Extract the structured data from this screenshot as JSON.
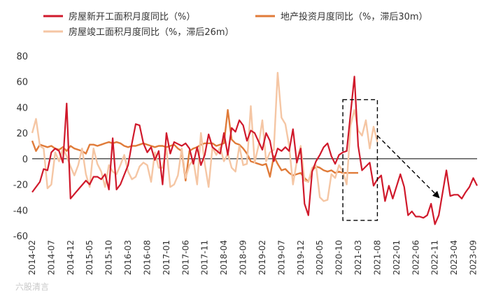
{
  "watermark": "六股清言",
  "chart_data": {
    "type": "line",
    "title": "",
    "xlabel": "",
    "ylabel": "",
    "ylim": [
      -60,
      80
    ],
    "yticks": [
      -60,
      -40,
      -20,
      0,
      20,
      40,
      60,
      80
    ],
    "x_start": "2014-02",
    "x_end": "2023-10",
    "x_tick_labels": [
      "2014-02",
      "2014-07",
      "2014-12",
      "2015-05",
      "2015-10",
      "2016-03",
      "2016-08",
      "2017-01",
      "2017-06",
      "2017-11",
      "2018-04",
      "2018-09",
      "2019-02",
      "2019-07",
      "2019-12",
      "2020-05",
      "2020-10",
      "2021-03",
      "2021-08",
      "2022-01",
      "2022-06",
      "2022-11",
      "2023-04",
      "2023-09"
    ],
    "legend_position": "top",
    "series": [
      {
        "name": "房屋新开工面积月度同比（%）",
        "color": "#d0192b",
        "points": [
          [
            "2014-02",
            -26
          ],
          [
            "2014-04",
            -18
          ],
          [
            "2014-05",
            -8
          ],
          [
            "2014-06",
            -9
          ],
          [
            "2014-07",
            5
          ],
          [
            "2014-08",
            8
          ],
          [
            "2014-09",
            6
          ],
          [
            "2014-10",
            -3
          ],
          [
            "2014-11",
            43
          ],
          [
            "2014-12",
            -31
          ],
          [
            "2015-02",
            -24
          ],
          [
            "2015-04",
            -17
          ],
          [
            "2015-05",
            -20
          ],
          [
            "2015-06",
            -14
          ],
          [
            "2015-07",
            -14
          ],
          [
            "2015-08",
            -16
          ],
          [
            "2015-09",
            -12
          ],
          [
            "2015-10",
            -24
          ],
          [
            "2015-11",
            16
          ],
          [
            "2015-12",
            -24
          ],
          [
            "2016-01",
            -20
          ],
          [
            "2016-03",
            -5
          ],
          [
            "2016-04",
            12
          ],
          [
            "2016-05",
            27
          ],
          [
            "2016-06",
            26
          ],
          [
            "2016-07",
            12
          ],
          [
            "2016-08",
            5
          ],
          [
            "2016-09",
            9
          ],
          [
            "2016-10",
            -1
          ],
          [
            "2016-11",
            6
          ],
          [
            "2016-12",
            -20
          ],
          [
            "2017-01",
            20
          ],
          [
            "2017-02",
            4
          ],
          [
            "2017-03",
            13
          ],
          [
            "2017-05",
            10
          ],
          [
            "2017-06",
            12
          ],
          [
            "2017-07",
            8
          ],
          [
            "2017-08",
            -4
          ],
          [
            "2017-09",
            9
          ],
          [
            "2017-10",
            -5
          ],
          [
            "2017-11",
            3
          ],
          [
            "2017-12",
            19
          ],
          [
            "2018-01",
            9
          ],
          [
            "2018-03",
            4
          ],
          [
            "2018-04",
            20
          ],
          [
            "2018-05",
            3
          ],
          [
            "2018-06",
            24
          ],
          [
            "2018-07",
            21
          ],
          [
            "2018-08",
            30
          ],
          [
            "2018-09",
            26
          ],
          [
            "2018-10",
            14
          ],
          [
            "2018-11",
            22
          ],
          [
            "2018-12",
            20
          ],
          [
            "2019-02",
            7
          ],
          [
            "2019-03",
            20
          ],
          [
            "2019-04",
            14
          ],
          [
            "2019-05",
            -2
          ],
          [
            "2019-06",
            8
          ],
          [
            "2019-07",
            6
          ],
          [
            "2019-08",
            9
          ],
          [
            "2019-09",
            6
          ],
          [
            "2019-10",
            23
          ],
          [
            "2019-11",
            -3
          ],
          [
            "2019-12",
            8
          ],
          [
            "2020-01",
            -35
          ],
          [
            "2020-02",
            -44
          ],
          [
            "2020-03",
            -10
          ],
          [
            "2020-04",
            -2
          ],
          [
            "2020-05",
            3
          ],
          [
            "2020-06",
            9
          ],
          [
            "2020-07",
            12
          ],
          [
            "2020-08",
            2
          ],
          [
            "2020-09",
            -4
          ],
          [
            "2020-10",
            3
          ],
          [
            "2020-11",
            5
          ],
          [
            "2020-12",
            6
          ],
          [
            "2021-02",
            64
          ],
          [
            "2021-03",
            10
          ],
          [
            "2021-04",
            -9
          ],
          [
            "2021-05",
            -6
          ],
          [
            "2021-06",
            -3
          ],
          [
            "2021-07",
            -21
          ],
          [
            "2021-08",
            -16
          ],
          [
            "2021-09",
            -13
          ],
          [
            "2021-10",
            -33
          ],
          [
            "2021-11",
            -21
          ],
          [
            "2021-12",
            -31
          ],
          [
            "2022-02",
            -12
          ],
          [
            "2022-03",
            -22
          ],
          [
            "2022-04",
            -44
          ],
          [
            "2022-05",
            -41
          ],
          [
            "2022-06",
            -45
          ],
          [
            "2022-07",
            -45
          ],
          [
            "2022-08",
            -46
          ],
          [
            "2022-09",
            -44
          ],
          [
            "2022-10",
            -35
          ],
          [
            "2022-11",
            -51
          ],
          [
            "2022-12",
            -44
          ],
          [
            "2023-02",
            -9
          ],
          [
            "2023-03",
            -29
          ],
          [
            "2023-04",
            -28
          ],
          [
            "2023-05",
            -28
          ],
          [
            "2023-06",
            -31
          ],
          [
            "2023-07",
            -26
          ],
          [
            "2023-08",
            -22
          ],
          [
            "2023-09",
            -15
          ],
          [
            "2023-10",
            -21
          ]
        ]
      },
      {
        "name": "地产投资月度同比（%，滞后30m）",
        "color": "#e07b39",
        "points": [
          [
            "2014-02",
            14
          ],
          [
            "2014-03",
            6
          ],
          [
            "2014-04",
            11
          ],
          [
            "2014-05",
            10
          ],
          [
            "2014-06",
            9
          ],
          [
            "2014-07",
            10
          ],
          [
            "2014-08",
            8
          ],
          [
            "2014-09",
            7
          ],
          [
            "2014-10",
            9
          ],
          [
            "2014-11",
            6
          ],
          [
            "2014-12",
            10
          ],
          [
            "2015-01",
            8
          ],
          [
            "2015-02",
            7
          ],
          [
            "2015-03",
            6
          ],
          [
            "2015-04",
            4
          ],
          [
            "2015-05",
            11
          ],
          [
            "2015-06",
            11
          ],
          [
            "2015-07",
            10
          ],
          [
            "2015-08",
            11
          ],
          [
            "2015-09",
            12
          ],
          [
            "2015-10",
            13
          ],
          [
            "2015-11",
            12
          ],
          [
            "2015-12",
            13
          ],
          [
            "2016-01",
            12
          ],
          [
            "2016-02",
            10
          ],
          [
            "2016-03",
            9
          ],
          [
            "2016-04",
            10
          ],
          [
            "2016-05",
            10
          ],
          [
            "2016-06",
            11
          ],
          [
            "2016-07",
            12
          ],
          [
            "2016-08",
            11
          ],
          [
            "2016-09",
            10
          ],
          [
            "2016-10",
            9
          ],
          [
            "2016-11",
            10
          ],
          [
            "2016-12",
            10
          ],
          [
            "2017-01",
            9
          ],
          [
            "2017-02",
            10
          ],
          [
            "2017-03",
            11
          ],
          [
            "2017-04",
            8
          ],
          [
            "2017-05",
            6
          ],
          [
            "2017-06",
            -17
          ],
          [
            "2017-07",
            6
          ],
          [
            "2017-08",
            8
          ],
          [
            "2017-09",
            9
          ],
          [
            "2017-10",
            11
          ],
          [
            "2017-11",
            12
          ],
          [
            "2017-12",
            12
          ],
          [
            "2018-01",
            12
          ],
          [
            "2018-02",
            10
          ],
          [
            "2018-03",
            11
          ],
          [
            "2018-04",
            12
          ],
          [
            "2018-05",
            38
          ],
          [
            "2018-06",
            15
          ],
          [
            "2018-07",
            12
          ],
          [
            "2018-08",
            11
          ],
          [
            "2018-09",
            8
          ],
          [
            "2018-10",
            4
          ],
          [
            "2018-11",
            -2
          ],
          [
            "2018-12",
            -3
          ],
          [
            "2019-01",
            -4
          ],
          [
            "2019-02",
            -5
          ],
          [
            "2019-03",
            -4
          ],
          [
            "2019-04",
            -14
          ],
          [
            "2019-05",
            2
          ],
          [
            "2019-06",
            -4
          ],
          [
            "2019-07",
            -9
          ],
          [
            "2019-08",
            -8
          ],
          [
            "2019-09",
            -11
          ],
          [
            "2019-10",
            -13
          ],
          [
            "2019-11",
            -12
          ],
          [
            "2019-12",
            -11
          ],
          [
            "2020-01",
            -15
          ],
          [
            "2020-02",
            -18
          ],
          [
            "2020-03",
            -9
          ],
          [
            "2020-04",
            -6
          ],
          [
            "2020-05",
            -7
          ],
          [
            "2020-06",
            -9
          ],
          [
            "2020-07",
            -10
          ],
          [
            "2020-08",
            -9
          ],
          [
            "2020-09",
            -11
          ],
          [
            "2020-10",
            -10
          ],
          [
            "2020-11",
            -11
          ],
          [
            "2020-12",
            -11
          ],
          [
            "2021-01",
            -11
          ],
          [
            "2021-02",
            -11
          ],
          [
            "2021-03",
            -11
          ]
        ]
      },
      {
        "name": "房屋竣工面积月度同比（%，滞后26m）",
        "color": "#f5c6a4",
        "points": [
          [
            "2014-02",
            20
          ],
          [
            "2014-03",
            31
          ],
          [
            "2014-04",
            10
          ],
          [
            "2014-05",
            8
          ],
          [
            "2014-06",
            -23
          ],
          [
            "2014-07",
            -20
          ],
          [
            "2014-08",
            5
          ],
          [
            "2014-09",
            -2
          ],
          [
            "2014-10",
            8
          ],
          [
            "2014-11",
            2
          ],
          [
            "2014-12",
            -6
          ],
          [
            "2015-01",
            -13
          ],
          [
            "2015-02",
            -5
          ],
          [
            "2015-03",
            8
          ],
          [
            "2015-04",
            -12
          ],
          [
            "2015-05",
            -22
          ],
          [
            "2015-06",
            8
          ],
          [
            "2015-07",
            -4
          ],
          [
            "2015-08",
            -10
          ],
          [
            "2015-09",
            -22
          ],
          [
            "2015-10",
            -5
          ],
          [
            "2015-11",
            -10
          ],
          [
            "2015-12",
            -12
          ],
          [
            "2016-01",
            -5
          ],
          [
            "2016-02",
            3
          ],
          [
            "2016-03",
            -10
          ],
          [
            "2016-04",
            -16
          ],
          [
            "2016-05",
            -14
          ],
          [
            "2016-06",
            -6
          ],
          [
            "2016-07",
            -3
          ],
          [
            "2016-08",
            -5
          ],
          [
            "2016-09",
            -18
          ],
          [
            "2016-10",
            5
          ],
          [
            "2016-11",
            -7
          ],
          [
            "2016-12",
            -7
          ],
          [
            "2017-01",
            8
          ],
          [
            "2017-02",
            -22
          ],
          [
            "2017-03",
            -20
          ],
          [
            "2017-04",
            -13
          ],
          [
            "2017-05",
            8
          ],
          [
            "2017-06",
            -15
          ],
          [
            "2017-07",
            -5
          ],
          [
            "2017-08",
            -1
          ],
          [
            "2017-09",
            -20
          ],
          [
            "2017-10",
            20
          ],
          [
            "2017-11",
            -4
          ],
          [
            "2017-12",
            -22
          ],
          [
            "2018-01",
            9
          ],
          [
            "2018-02",
            3
          ],
          [
            "2018-03",
            9
          ],
          [
            "2018-04",
            -2
          ],
          [
            "2018-05",
            4
          ],
          [
            "2018-06",
            -7
          ],
          [
            "2018-07",
            -10
          ],
          [
            "2018-08",
            10
          ],
          [
            "2018-09",
            -5
          ],
          [
            "2018-10",
            -4
          ],
          [
            "2018-11",
            41
          ],
          [
            "2018-12",
            -3
          ],
          [
            "2019-01",
            10
          ],
          [
            "2019-02",
            30
          ],
          [
            "2019-03",
            -2
          ],
          [
            "2019-04",
            5
          ],
          [
            "2019-05",
            7
          ],
          [
            "2019-06",
            67
          ],
          [
            "2019-07",
            32
          ],
          [
            "2019-08",
            27
          ],
          [
            "2019-09",
            10
          ],
          [
            "2019-10",
            -20
          ],
          [
            "2019-11",
            -2
          ],
          [
            "2019-12",
            10
          ],
          [
            "2020-01",
            -17
          ],
          [
            "2020-02",
            -18
          ],
          [
            "2020-03",
            -7
          ],
          [
            "2020-04",
            -5
          ],
          [
            "2020-05",
            -30
          ],
          [
            "2020-06",
            -33
          ],
          [
            "2020-07",
            -32
          ],
          [
            "2020-08",
            -12
          ],
          [
            "2020-09",
            -15
          ],
          [
            "2020-10",
            -5
          ],
          [
            "2020-11",
            -10
          ],
          [
            "2020-12",
            -20
          ],
          [
            "2021-01",
            26
          ],
          [
            "2021-02",
            38
          ],
          [
            "2021-03",
            22
          ],
          [
            "2021-04",
            18
          ],
          [
            "2021-05",
            30
          ],
          [
            "2021-06",
            8
          ],
          [
            "2021-07",
            25
          ],
          [
            "2021-08",
            13
          ]
        ]
      }
    ],
    "annotations": [
      {
        "type": "dashed-box",
        "x_from": "2020-11",
        "x_to": "2021-08",
        "y_from": -48,
        "y_to": 46
      },
      {
        "type": "dashed-arrow",
        "from": [
          "2021-08",
          18
        ],
        "to": [
          "2022-12",
          -30
        ]
      }
    ]
  }
}
